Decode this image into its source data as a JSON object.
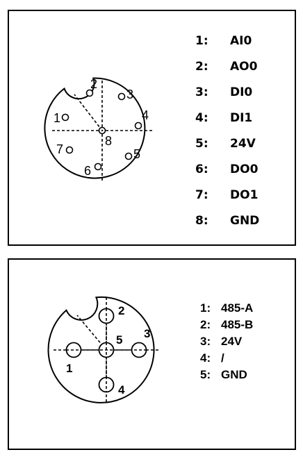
{
  "connector_8pin": {
    "pin_labels": [
      "1",
      "2",
      "3",
      "4",
      "5",
      "6",
      "7",
      "8"
    ],
    "legend": [
      {
        "num": "1:",
        "signal": "AI0"
      },
      {
        "num": "2:",
        "signal": "AO0"
      },
      {
        "num": "3:",
        "signal": "DI0"
      },
      {
        "num": "4:",
        "signal": "DI1"
      },
      {
        "num": "5:",
        "signal": "24V"
      },
      {
        "num": "6:",
        "signal": "DO0"
      },
      {
        "num": "7:",
        "signal": "DO1"
      },
      {
        "num": "8:",
        "signal": "GND"
      }
    ]
  },
  "connector_5pin": {
    "pin_labels": [
      "1",
      "2",
      "3",
      "4",
      "5"
    ],
    "legend": [
      {
        "num": "1:",
        "signal": "485-A"
      },
      {
        "num": "2:",
        "signal": "485-B"
      },
      {
        "num": "3:",
        "signal": "24V"
      },
      {
        "num": "4:",
        "signal": "/"
      },
      {
        "num": "5:",
        "signal": "GND"
      }
    ]
  }
}
